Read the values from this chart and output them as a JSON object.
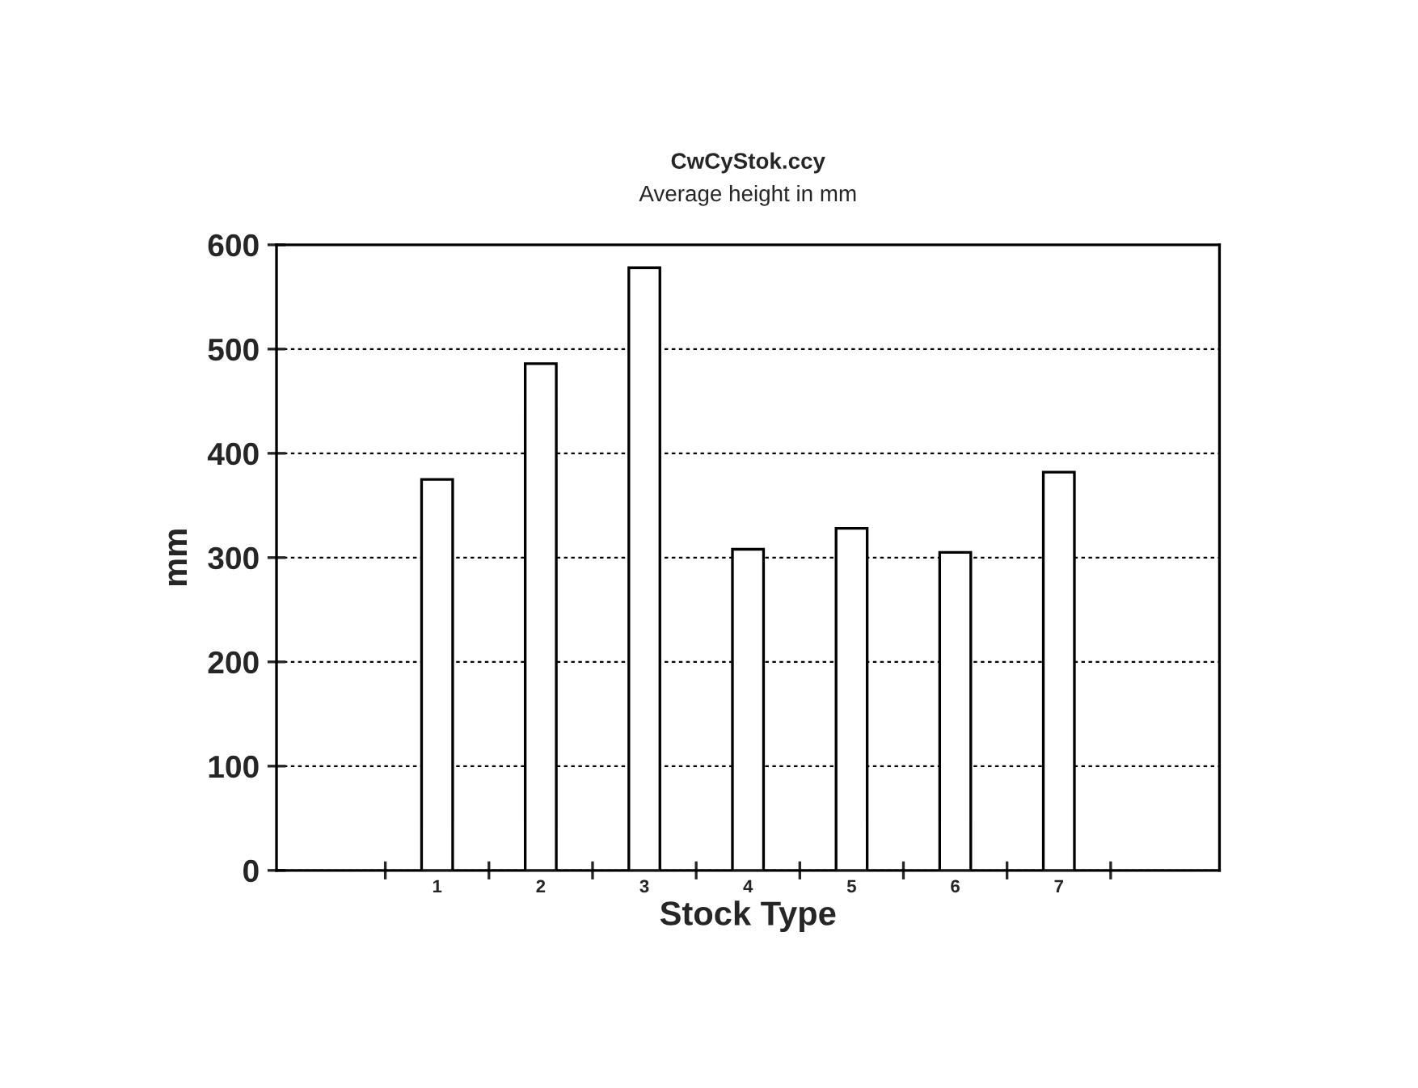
{
  "chart_data": {
    "type": "bar",
    "title": "CwCyStok.ccy",
    "subtitle": "Average height in mm",
    "xlabel": "Stock Type",
    "ylabel": "mm",
    "categories": [
      "1",
      "2",
      "3",
      "4",
      "5",
      "6",
      "7"
    ],
    "values": [
      375,
      486,
      578,
      308,
      328,
      305,
      382
    ],
    "color": "#ffffff",
    "ylim": [
      0,
      600
    ],
    "yticks": [
      0,
      100,
      200,
      300,
      400,
      500,
      600
    ],
    "grid": "y",
    "legend": false
  }
}
